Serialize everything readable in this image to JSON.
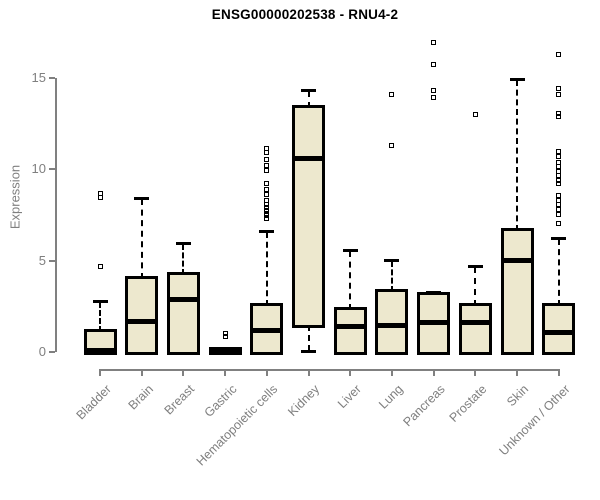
{
  "chart_data": {
    "type": "boxplot",
    "title": "ENSG00000202538 - RNU4-2",
    "ylabel": "Expression",
    "xlabel": "",
    "yticks": [
      0,
      5,
      10,
      15
    ],
    "ylim": [
      0,
      17.2
    ],
    "grid": false,
    "legend": "none",
    "categories": [
      "Bladder",
      "Brain",
      "Breast",
      "Gastric",
      "Hematopoietic cells",
      "Kidney",
      "Liver",
      "Lung",
      "Pancreas",
      "Prostate",
      "Skin",
      "Unknown / Other"
    ],
    "boxes": [
      {
        "category": "Bladder",
        "whisker_low": 0,
        "q1": 0,
        "median": 0.1,
        "q3": 1.1,
        "whisker_high": 2.75,
        "outliers": [
          4.7,
          8.45,
          8.65
        ]
      },
      {
        "category": "Brain",
        "whisker_low": 0,
        "q1": 0,
        "median": 1.65,
        "q3": 4.0,
        "whisker_high": 8.4,
        "outliers": []
      },
      {
        "category": "Breast",
        "whisker_low": 0,
        "q1": 0,
        "median": 2.9,
        "q3": 4.2,
        "whisker_high": 5.9,
        "outliers": []
      },
      {
        "category": "Gastric",
        "whisker_low": 0,
        "q1": 0,
        "median": 0.05,
        "q3": 0.12,
        "whisker_high": 0.12,
        "outliers": [
          0.85,
          1.0
        ]
      },
      {
        "category": "Hematopoietic cells",
        "whisker_low": 0,
        "q1": 0,
        "median": 1.2,
        "q3": 2.5,
        "whisker_high": 6.55,
        "outliers": [
          7.3,
          7.45,
          7.6,
          7.75,
          7.9,
          8.1,
          8.3,
          8.6,
          8.9,
          9.2,
          9.95,
          10.2,
          10.55,
          10.9,
          11.15
        ]
      },
      {
        "category": "Kidney",
        "whisker_low": 0.05,
        "q1": 1.5,
        "median": 10.6,
        "q3": 13.35,
        "whisker_high": 14.3,
        "outliers": []
      },
      {
        "category": "Liver",
        "whisker_low": 0,
        "q1": 0,
        "median": 1.4,
        "q3": 2.3,
        "whisker_high": 5.55,
        "outliers": []
      },
      {
        "category": "Lung",
        "whisker_low": 0,
        "q1": 0,
        "median": 1.45,
        "q3": 3.3,
        "whisker_high": 5.0,
        "outliers": [
          11.3,
          14.1
        ]
      },
      {
        "category": "Pancreas",
        "whisker_low": 0,
        "q1": 0,
        "median": 1.6,
        "q3": 3.1,
        "whisker_high": 3.25,
        "outliers": [
          13.95,
          14.3,
          15.75,
          16.95
        ]
      },
      {
        "category": "Prostate",
        "whisker_low": 0,
        "q1": 0,
        "median": 1.6,
        "q3": 2.5,
        "whisker_high": 4.65,
        "outliers": [
          13.0
        ]
      },
      {
        "category": "Skin",
        "whisker_low": 0,
        "q1": 0,
        "median": 5.0,
        "q3": 6.6,
        "whisker_high": 14.9,
        "outliers": []
      },
      {
        "category": "Unknown / Other",
        "whisker_low": 0,
        "q1": 0,
        "median": 1.05,
        "q3": 2.5,
        "whisker_high": 6.2,
        "outliers": [
          7.05,
          7.55,
          7.8,
          8.05,
          8.3,
          8.55,
          9.2,
          9.4,
          9.65,
          9.9,
          10.15,
          10.4,
          10.7,
          11.0,
          12.9,
          13.05,
          14.1,
          14.4,
          16.3
        ]
      }
    ],
    "colors": {
      "box_fill": "#EDE8CE",
      "box_border": "#000000",
      "median": "#000000",
      "whisker": "#000000",
      "axis": "#808080",
      "tick_label": "#7f7f7f",
      "title": "#000000",
      "background": "#ffffff"
    }
  }
}
